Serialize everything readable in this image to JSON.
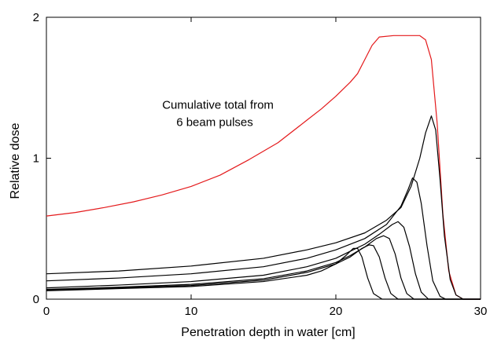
{
  "chart_data": {
    "type": "line",
    "title": "",
    "xlabel": "Penetration depth in water [cm]",
    "ylabel": "Relative dose",
    "xlim": [
      0,
      30
    ],
    "ylim": [
      0,
      2
    ],
    "x_ticks": [
      0,
      10,
      20,
      30
    ],
    "y_ticks": [
      0,
      1,
      2
    ],
    "grid": false,
    "legend": "none",
    "annotation": {
      "lines": [
        "Cumulative total from",
        "6 beam pulses"
      ],
      "x": 8,
      "y": 1.35
    },
    "colors": {
      "total": "#e41a1c",
      "pulses": "#000000",
      "axes": "#000000"
    },
    "series": [
      {
        "color": "#e41a1c",
        "points": [
          [
            0,
            0.59
          ],
          [
            2,
            0.615
          ],
          [
            4,
            0.65
          ],
          [
            6,
            0.69
          ],
          [
            8,
            0.74
          ],
          [
            10,
            0.8
          ],
          [
            12,
            0.88
          ],
          [
            14,
            0.99
          ],
          [
            16,
            1.11
          ],
          [
            18,
            1.27
          ],
          [
            19,
            1.35
          ],
          [
            20,
            1.44
          ],
          [
            21,
            1.54
          ],
          [
            21.5,
            1.6
          ],
          [
            22,
            1.7
          ],
          [
            22.5,
            1.8
          ],
          [
            23,
            1.86
          ],
          [
            24,
            1.87
          ],
          [
            25,
            1.87
          ],
          [
            25.8,
            1.87
          ],
          [
            26.2,
            1.84
          ],
          [
            26.6,
            1.7
          ],
          [
            27,
            1.25
          ],
          [
            27.4,
            0.6
          ],
          [
            27.8,
            0.2
          ],
          [
            28.3,
            0.03
          ],
          [
            28.8,
            0.0
          ],
          [
            30,
            0.0
          ]
        ]
      },
      {
        "color": "#000000",
        "points": [
          [
            0,
            0.06
          ],
          [
            5,
            0.075
          ],
          [
            10,
            0.09
          ],
          [
            15,
            0.125
          ],
          [
            18,
            0.17
          ],
          [
            19,
            0.2
          ],
          [
            20,
            0.25
          ],
          [
            20.7,
            0.31
          ],
          [
            21.2,
            0.36
          ],
          [
            21.5,
            0.36
          ],
          [
            21.8,
            0.3
          ],
          [
            22.2,
            0.15
          ],
          [
            22.6,
            0.04
          ],
          [
            23.2,
            0.0
          ],
          [
            30,
            0.0
          ]
        ]
      },
      {
        "color": "#000000",
        "points": [
          [
            0,
            0.065
          ],
          [
            5,
            0.08
          ],
          [
            10,
            0.097
          ],
          [
            15,
            0.135
          ],
          [
            18,
            0.19
          ],
          [
            20,
            0.25
          ],
          [
            21,
            0.3
          ],
          [
            21.8,
            0.36
          ],
          [
            22.3,
            0.385
          ],
          [
            22.6,
            0.38
          ],
          [
            23,
            0.3
          ],
          [
            23.4,
            0.15
          ],
          [
            23.8,
            0.04
          ],
          [
            24.3,
            0.0
          ],
          [
            30,
            0.0
          ]
        ]
      },
      {
        "color": "#000000",
        "points": [
          [
            0,
            0.07
          ],
          [
            5,
            0.085
          ],
          [
            10,
            0.105
          ],
          [
            15,
            0.145
          ],
          [
            18,
            0.2
          ],
          [
            20,
            0.26
          ],
          [
            21,
            0.31
          ],
          [
            22,
            0.37
          ],
          [
            22.8,
            0.43
          ],
          [
            23.3,
            0.45
          ],
          [
            23.7,
            0.43
          ],
          [
            24.1,
            0.32
          ],
          [
            24.5,
            0.15
          ],
          [
            24.9,
            0.04
          ],
          [
            25.4,
            0.0
          ],
          [
            30,
            0.0
          ]
        ]
      },
      {
        "color": "#000000",
        "points": [
          [
            0,
            0.08
          ],
          [
            5,
            0.1
          ],
          [
            10,
            0.125
          ],
          [
            15,
            0.17
          ],
          [
            18,
            0.23
          ],
          [
            20,
            0.29
          ],
          [
            21,
            0.34
          ],
          [
            22,
            0.39
          ],
          [
            23,
            0.46
          ],
          [
            23.9,
            0.53
          ],
          [
            24.3,
            0.55
          ],
          [
            24.7,
            0.51
          ],
          [
            25.1,
            0.37
          ],
          [
            25.5,
            0.18
          ],
          [
            25.9,
            0.05
          ],
          [
            26.4,
            0.0
          ],
          [
            30,
            0.0
          ]
        ]
      },
      {
        "color": "#000000",
        "points": [
          [
            0,
            0.13
          ],
          [
            5,
            0.15
          ],
          [
            10,
            0.18
          ],
          [
            15,
            0.23
          ],
          [
            18,
            0.29
          ],
          [
            20,
            0.35
          ],
          [
            22,
            0.43
          ],
          [
            23.5,
            0.53
          ],
          [
            24.5,
            0.66
          ],
          [
            25,
            0.78
          ],
          [
            25.3,
            0.86
          ],
          [
            25.6,
            0.83
          ],
          [
            25.9,
            0.68
          ],
          [
            26.3,
            0.38
          ],
          [
            26.7,
            0.13
          ],
          [
            27.2,
            0.02
          ],
          [
            27.6,
            0.0
          ],
          [
            30,
            0.0
          ]
        ]
      },
      {
        "color": "#000000",
        "points": [
          [
            0,
            0.18
          ],
          [
            5,
            0.2
          ],
          [
            10,
            0.235
          ],
          [
            15,
            0.29
          ],
          [
            18,
            0.35
          ],
          [
            20,
            0.4
          ],
          [
            22,
            0.47
          ],
          [
            23.5,
            0.56
          ],
          [
            24.5,
            0.65
          ],
          [
            25.2,
            0.8
          ],
          [
            25.8,
            1.0
          ],
          [
            26.2,
            1.18
          ],
          [
            26.6,
            1.3
          ],
          [
            26.9,
            1.2
          ],
          [
            27.2,
            0.85
          ],
          [
            27.5,
            0.45
          ],
          [
            27.9,
            0.14
          ],
          [
            28.3,
            0.03
          ],
          [
            28.8,
            0.0
          ],
          [
            30,
            0.0
          ]
        ]
      }
    ]
  }
}
